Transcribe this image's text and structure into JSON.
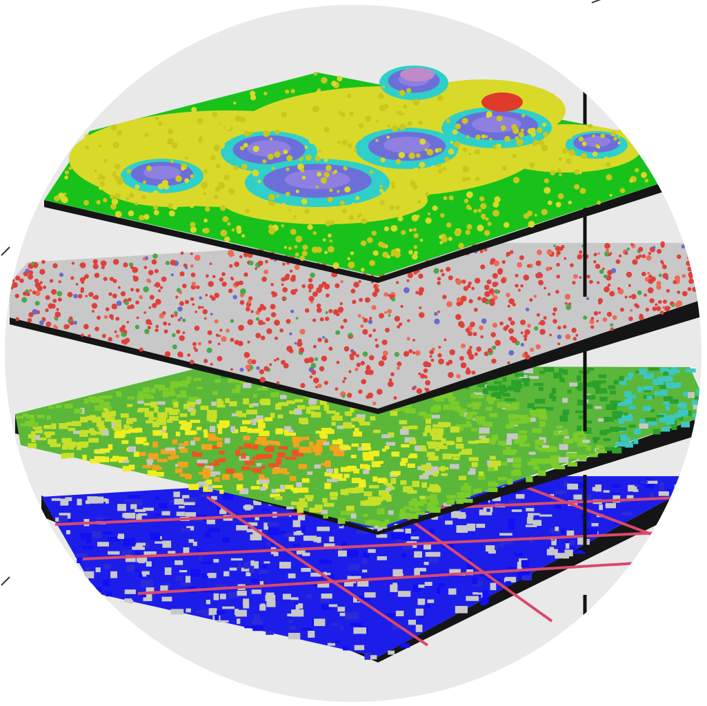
{
  "image": {
    "background_color": "#ffffff",
    "disc_color": "#e9e9e9",
    "axis_color": "#111111",
    "layers": [
      {
        "id": "elevation",
        "base_color": "#19c21b",
        "palette": [
          "#d9d92a",
          "#c9c61e",
          "#2ed0c9",
          "#6d6fd8",
          "#8f7fe0",
          "#c08ac8",
          "#e03a2a"
        ]
      },
      {
        "id": "point-scatter",
        "base_color": "#c8c8c8",
        "palette": [
          "#e0403a",
          "#ee6a55",
          "#4aa84a",
          "#6a6ad0"
        ]
      },
      {
        "id": "heat-gradient",
        "base_color": "#5ab73a",
        "palette": [
          "#2aa12a",
          "#7ccc2a",
          "#c8e02a",
          "#f0ee20",
          "#f5a21c",
          "#ef5322",
          "#3cc7c3",
          "#c7c7c7"
        ]
      },
      {
        "id": "network-grid",
        "base_color": "#1d1dea",
        "palette": [
          "#1010f0",
          "#2a2ad8",
          "#d94a6a",
          "#c8c8c8"
        ]
      }
    ]
  }
}
